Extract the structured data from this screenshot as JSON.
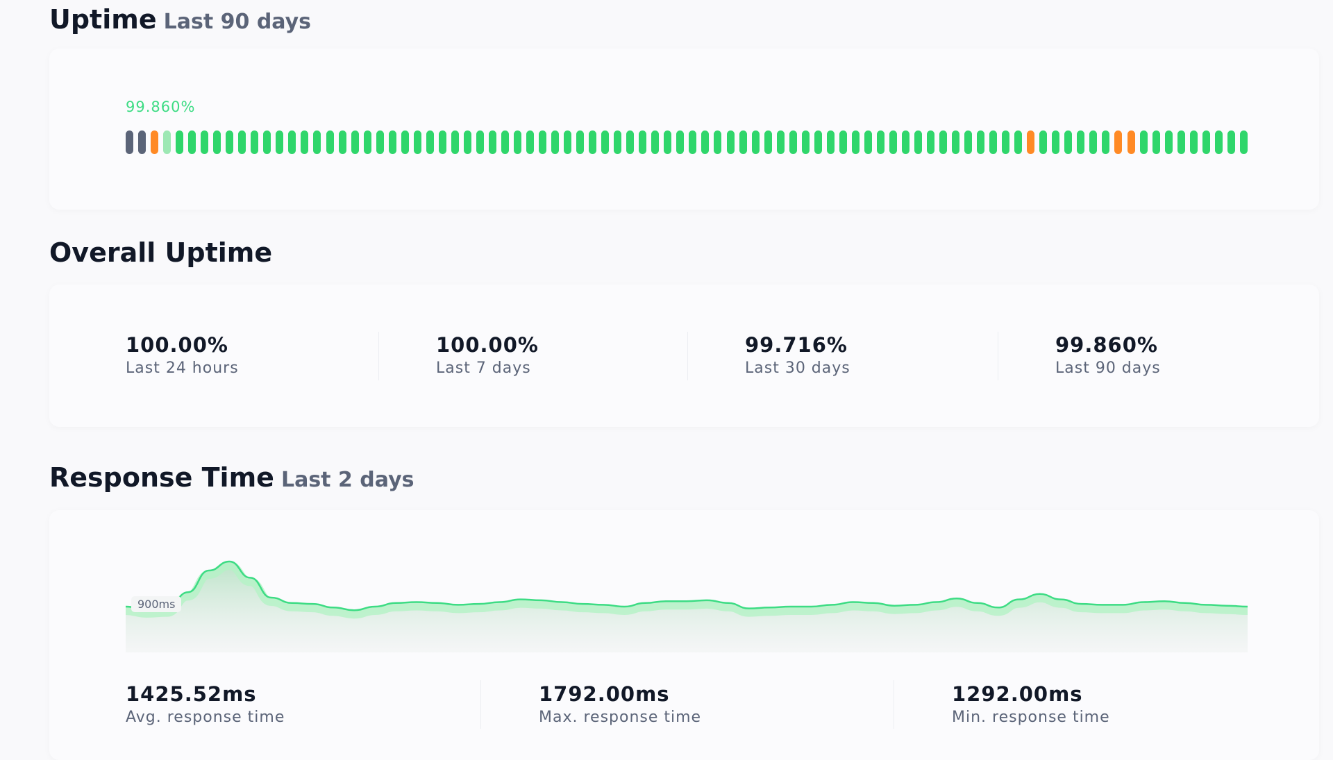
{
  "uptime": {
    "title": "Uptime",
    "subtitle": "Last 90 days",
    "percent": "99.860%",
    "colors": {
      "up": "#2fd66b",
      "down": "#ff8a25",
      "nodata": "#5b6478",
      "partial": "#9de8b4"
    },
    "days": [
      "nodata",
      "nodata",
      "down",
      "partial",
      "up",
      "up",
      "up",
      "up",
      "up",
      "up",
      "up",
      "up",
      "up",
      "up",
      "up",
      "up",
      "up",
      "up",
      "up",
      "up",
      "up",
      "up",
      "up",
      "up",
      "up",
      "up",
      "up",
      "up",
      "up",
      "up",
      "up",
      "up",
      "up",
      "up",
      "up",
      "up",
      "up",
      "up",
      "up",
      "up",
      "up",
      "up",
      "up",
      "up",
      "up",
      "up",
      "up",
      "up",
      "up",
      "up",
      "up",
      "up",
      "up",
      "up",
      "up",
      "up",
      "up",
      "up",
      "up",
      "up",
      "up",
      "up",
      "up",
      "up",
      "up",
      "up",
      "up",
      "up",
      "up",
      "up",
      "up",
      "up",
      "down",
      "up",
      "up",
      "up",
      "up",
      "up",
      "up",
      "down",
      "down",
      "up",
      "up",
      "up",
      "up",
      "up",
      "up",
      "up",
      "up",
      "up"
    ]
  },
  "overall": {
    "title": "Overall Uptime",
    "stats": [
      {
        "value": "100.00%",
        "label": "Last 24 hours"
      },
      {
        "value": "100.00%",
        "label": "Last 7 days"
      },
      {
        "value": "99.716%",
        "label": "Last 30 days"
      },
      {
        "value": "99.860%",
        "label": "Last 90 days"
      }
    ]
  },
  "response": {
    "title": "Response Time",
    "subtitle": "Last 2 days",
    "reference_label": "900ms",
    "line_color": "#3ddc84",
    "series_ms": [
      1400,
      1385,
      1390,
      1480,
      1600,
      1650,
      1560,
      1450,
      1420,
      1415,
      1395,
      1380,
      1400,
      1420,
      1425,
      1420,
      1410,
      1415,
      1425,
      1440,
      1435,
      1425,
      1415,
      1410,
      1400,
      1420,
      1430,
      1430,
      1435,
      1420,
      1390,
      1395,
      1400,
      1400,
      1410,
      1425,
      1420,
      1405,
      1410,
      1425,
      1445,
      1420,
      1395,
      1440,
      1470,
      1440,
      1415,
      1410,
      1410,
      1425,
      1430,
      1420,
      1410,
      1405,
      1400
    ],
    "stats": [
      {
        "value": "1425.52ms",
        "label": "Avg. response time"
      },
      {
        "value": "1792.00ms",
        "label": "Max. response time"
      },
      {
        "value": "1292.00ms",
        "label": "Min. response time"
      }
    ]
  }
}
